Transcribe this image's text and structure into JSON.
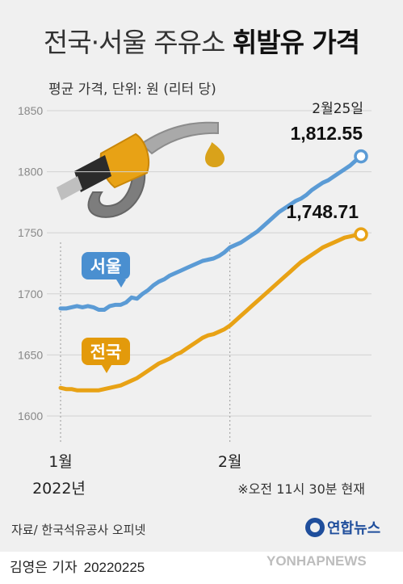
{
  "header": {
    "title_light": "전국·서울 주유소",
    "title_bold": "휘발유 가격",
    "subtitle": "평균 가격, 단위: 원 (리터 당)"
  },
  "annotations": {
    "date_label": "2월25일",
    "note": "※오전 11시 30분 현재"
  },
  "chart_data": {
    "type": "line",
    "title": "전국·서울 주유소 휘발유 가격",
    "ylabel": "평균 가격, 단위: 원 (리터 당)",
    "ylim": [
      1600,
      1850
    ],
    "yticks": [
      1600,
      1650,
      1700,
      1750,
      1800,
      1850
    ],
    "x_ticks": [
      {
        "label": "1월",
        "sublabel": "2022년",
        "index": 0
      },
      {
        "label": "2월",
        "sublabel": "",
        "index": 31
      }
    ],
    "series": [
      {
        "name": "서울",
        "color": "#5b9bd5",
        "label_color": "#4a8fd0",
        "end_label": "1,812.55",
        "values": [
          1688,
          1688,
          1689,
          1690,
          1689,
          1690,
          1689,
          1687,
          1687,
          1690,
          1691,
          1691,
          1693,
          1697,
          1696,
          1700,
          1703,
          1707,
          1710,
          1712,
          1715,
          1717,
          1719,
          1721,
          1723,
          1725,
          1727,
          1728,
          1729,
          1731,
          1734,
          1738,
          1740,
          1742,
          1745,
          1748,
          1751,
          1755,
          1759,
          1763,
          1767,
          1770,
          1773,
          1776,
          1778,
          1781,
          1785,
          1788,
          1791,
          1793,
          1796,
          1799,
          1802,
          1805,
          1809,
          1812.55
        ]
      },
      {
        "name": "전국",
        "color": "#e8a215",
        "label_color": "#e39a0b",
        "end_label": "1,748.71",
        "values": [
          1623,
          1622,
          1622,
          1621,
          1621,
          1621,
          1621,
          1621,
          1622,
          1623,
          1624,
          1625,
          1627,
          1629,
          1631,
          1634,
          1637,
          1640,
          1643,
          1645,
          1647,
          1650,
          1652,
          1655,
          1658,
          1661,
          1664,
          1666,
          1667,
          1669,
          1671,
          1674,
          1678,
          1682,
          1686,
          1690,
          1694,
          1698,
          1702,
          1706,
          1710,
          1714,
          1718,
          1722,
          1726,
          1729,
          1732,
          1735,
          1738,
          1740,
          1742,
          1744,
          1746,
          1747,
          1748,
          1748.71
        ]
      }
    ]
  },
  "footer": {
    "source": "자료/ 한국석유공사 오피넷",
    "logo": "연합뉴스",
    "reporter": "김영은 기자",
    "date": "20220225",
    "watermark": "YONHAPNEWS",
    "icon": "yonhap-logo-icon"
  }
}
